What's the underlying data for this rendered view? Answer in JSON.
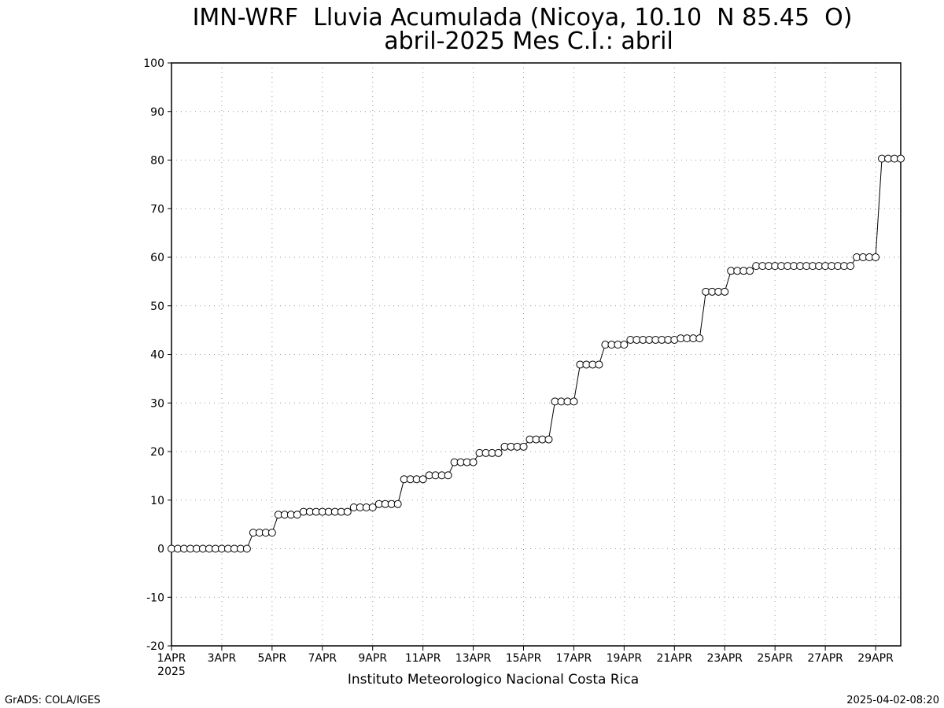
{
  "chart_data": {
    "type": "line",
    "title": "IMN-WRF  Lluvia Acumulada (Nicoya, 10.10  N 85.45  O)",
    "subtitle": "abril-2025 Mes C.I.: abril",
    "x_year_label": "2025",
    "x_axis_label": "Instituto Meteorologico Nacional Costa Rica",
    "credit": "GrADS: COLA/IGES",
    "timestamp": "2025-04-02-08:20",
    "grid": true,
    "xlim": [
      0,
      29
    ],
    "xticks": [
      {
        "value": 0,
        "label": "1APR"
      },
      {
        "value": 2,
        "label": "3APR"
      },
      {
        "value": 4,
        "label": "5APR"
      },
      {
        "value": 6,
        "label": "7APR"
      },
      {
        "value": 8,
        "label": "9APR"
      },
      {
        "value": 10,
        "label": "11APR"
      },
      {
        "value": 12,
        "label": "13APR"
      },
      {
        "value": 14,
        "label": "15APR"
      },
      {
        "value": 16,
        "label": "17APR"
      },
      {
        "value": 18,
        "label": "19APR"
      },
      {
        "value": 20,
        "label": "21APR"
      },
      {
        "value": 22,
        "label": "23APR"
      },
      {
        "value": 24,
        "label": "25APR"
      },
      {
        "value": 26,
        "label": "27APR"
      },
      {
        "value": 28,
        "label": "29APR"
      }
    ],
    "ylim": [
      -20,
      100
    ],
    "yticks": [
      -20,
      -10,
      0,
      10,
      20,
      30,
      40,
      50,
      60,
      70,
      80,
      90,
      100
    ],
    "x": [
      0,
      0.25,
      0.5,
      0.75,
      1,
      1.25,
      1.5,
      1.75,
      2,
      2.25,
      2.5,
      2.75,
      3,
      3.25,
      3.5,
      3.75,
      4,
      4.25,
      4.5,
      4.75,
      5,
      5.25,
      5.5,
      5.75,
      6,
      6.25,
      6.5,
      6.75,
      7,
      7.25,
      7.5,
      7.75,
      8,
      8.25,
      8.5,
      8.75,
      9,
      9.25,
      9.5,
      9.75,
      10,
      10.25,
      10.5,
      10.75,
      11,
      11.25,
      11.5,
      11.75,
      12,
      12.25,
      12.5,
      12.75,
      13,
      13.25,
      13.5,
      13.75,
      14,
      14.25,
      14.5,
      14.75,
      15,
      15.25,
      15.5,
      15.75,
      16,
      16.25,
      16.5,
      16.75,
      17,
      17.25,
      17.5,
      17.75,
      18,
      18.25,
      18.5,
      18.75,
      19,
      19.25,
      19.5,
      19.75,
      20,
      20.25,
      20.5,
      20.75,
      21,
      21.25,
      21.5,
      21.75,
      22,
      22.25,
      22.5,
      22.75,
      23,
      23.25,
      23.5,
      23.75,
      24,
      24.25,
      24.5,
      24.75,
      25,
      25.25,
      25.5,
      25.75,
      26,
      26.25,
      26.5,
      26.75,
      27,
      27.25,
      27.5,
      27.75,
      28,
      28.25,
      28.5,
      28.75,
      29
    ],
    "series": [
      {
        "color": "#000000",
        "values": [
          0,
          0,
          0,
          0,
          0,
          0,
          0,
          0,
          0,
          0,
          0,
          0,
          0,
          3.3,
          3.3,
          3.3,
          3.3,
          7,
          7,
          7,
          7,
          7.6,
          7.6,
          7.6,
          7.6,
          7.6,
          7.6,
          7.6,
          7.6,
          8.5,
          8.5,
          8.5,
          8.5,
          9.2,
          9.2,
          9.2,
          9.2,
          14.3,
          14.3,
          14.3,
          14.3,
          15.1,
          15.1,
          15.1,
          15.1,
          17.8,
          17.8,
          17.8,
          17.8,
          19.7,
          19.7,
          19.7,
          19.7,
          21,
          21,
          21,
          21,
          22.5,
          22.5,
          22.5,
          22.5,
          30.3,
          30.3,
          30.3,
          30.3,
          37.9,
          37.9,
          37.9,
          37.9,
          42,
          42,
          42,
          42,
          43,
          43,
          43,
          43,
          43,
          43,
          43,
          43,
          43.3,
          43.3,
          43.3,
          43.3,
          52.9,
          52.9,
          52.9,
          52.9,
          57.2,
          57.2,
          57.2,
          57.2,
          58.2,
          58.2,
          58.2,
          58.2,
          58.2,
          58.2,
          58.2,
          58.2,
          58.2,
          58.2,
          58.2,
          58.2,
          58.2,
          58.2,
          58.2,
          58.2,
          60,
          60,
          60,
          60,
          80.3,
          80.3,
          80.3,
          80.3
        ]
      }
    ]
  }
}
